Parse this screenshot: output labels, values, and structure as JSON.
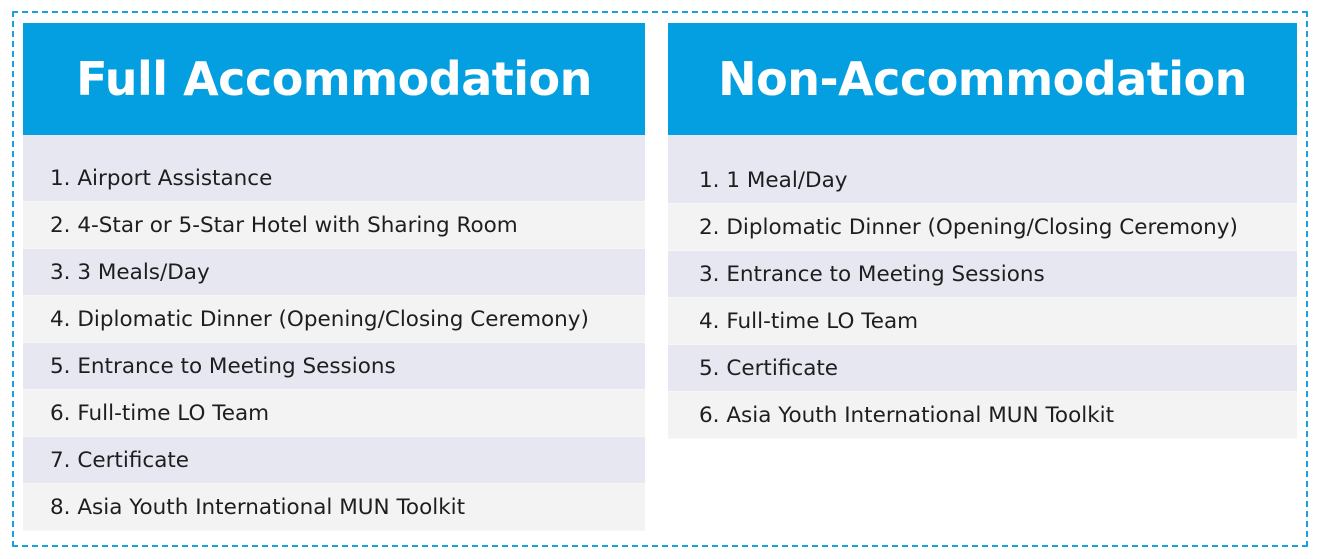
{
  "colors": {
    "header_bg": "#049fe0",
    "header_text": "#ffffff",
    "row_odd_bg": "#e7e7f1",
    "row_even_bg": "#f3f3f3",
    "border_dashed": "#1aa0dd"
  },
  "full_accommodation": {
    "title": "Full Accommodation",
    "items": [
      "1. Airport Assistance",
      "2. 4-Star or 5-Star Hotel with Sharing Room",
      "3. 3 Meals/Day",
      "4. Diplomatic Dinner (Opening/Closing Ceremony)",
      "5. Entrance to Meeting Sessions",
      "6. Full-time LO Team",
      "7. Certificate",
      "8. Asia Youth International MUN Toolkit"
    ]
  },
  "non_accommodation": {
    "title": "Non-Accommodation",
    "items": [
      "1. 1 Meal/Day",
      "2. Diplomatic Dinner (Opening/Closing Ceremony)",
      "3. Entrance to Meeting Sessions",
      "4. Full-time LO Team",
      "5. Certificate",
      "6. Asia Youth International MUN Toolkit"
    ]
  }
}
